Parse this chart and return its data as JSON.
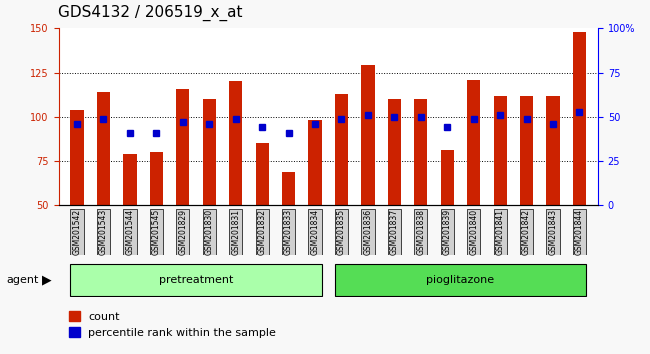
{
  "title": "GDS4132 / 206519_x_at",
  "samples": [
    "GSM201542",
    "GSM201543",
    "GSM201544",
    "GSM201545",
    "GSM201829",
    "GSM201830",
    "GSM201831",
    "GSM201832",
    "GSM201833",
    "GSM201834",
    "GSM201835",
    "GSM201836",
    "GSM201837",
    "GSM201838",
    "GSM201839",
    "GSM201840",
    "GSM201841",
    "GSM201842",
    "GSM201843",
    "GSM201844"
  ],
  "count_values": [
    104,
    114,
    79,
    80,
    116,
    110,
    120,
    85,
    69,
    98,
    113,
    129,
    110,
    110,
    81,
    121,
    112,
    112,
    112,
    148
  ],
  "percentile_values": [
    46,
    49,
    41,
    41,
    47,
    46,
    49,
    44,
    41,
    46,
    49,
    51,
    50,
    50,
    44,
    49,
    51,
    49,
    46,
    53
  ],
  "pretreatment_samples": [
    "GSM201542",
    "GSM201543",
    "GSM201544",
    "GSM201545",
    "GSM201829",
    "GSM201830",
    "GSM201831",
    "GSM201832",
    "GSM201833",
    "GSM201834"
  ],
  "pioglitazone_samples": [
    "GSM201835",
    "GSM201836",
    "GSM201837",
    "GSM201838",
    "GSM201839",
    "GSM201840",
    "GSM201841",
    "GSM201842",
    "GSM201843",
    "GSM201844"
  ],
  "bar_color_count": "#cc2200",
  "bar_color_percentile": "#0000cc",
  "bar_width": 0.5,
  "ylim_left": [
    50,
    150
  ],
  "ylim_right": [
    0,
    100
  ],
  "yticks_left": [
    50,
    75,
    100,
    125,
    150
  ],
  "yticks_right": [
    0,
    25,
    50,
    75,
    100
  ],
  "ytick_labels_right": [
    "0",
    "25",
    "50",
    "75",
    "100%"
  ],
  "grid_ticks": [
    75,
    100,
    125
  ],
  "bg_color": "#f0f0f0",
  "plot_bg": "#ffffff",
  "pretreatment_color": "#aaffaa",
  "pioglitazone_color": "#55dd55",
  "agent_label": "agent",
  "legend_count": "count",
  "legend_percentile": "percentile rank within the sample",
  "title_fontsize": 11,
  "tick_fontsize": 7,
  "label_fontsize": 8
}
